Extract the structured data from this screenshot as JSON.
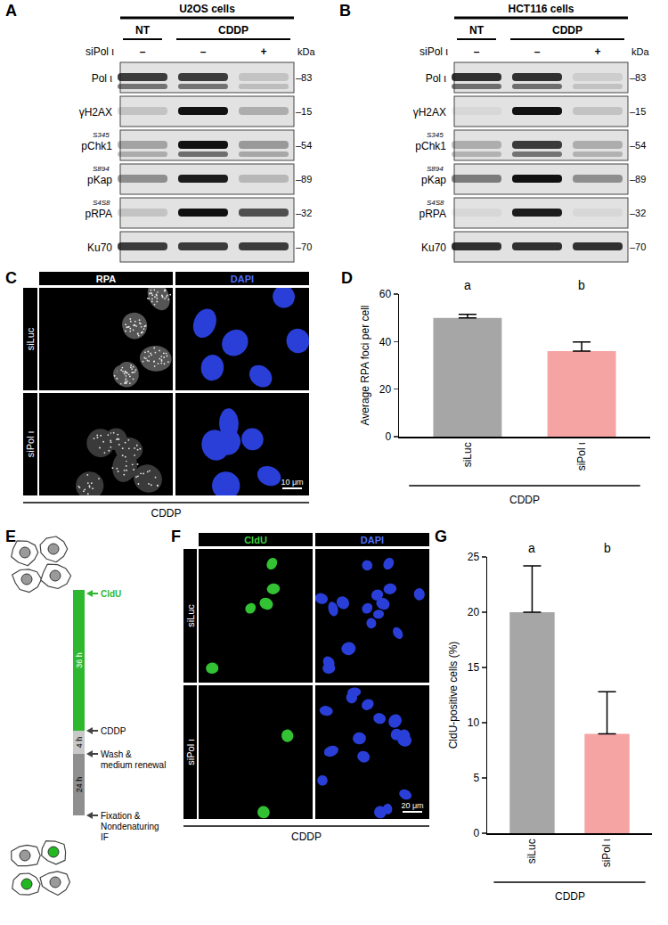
{
  "blots": [
    {
      "panel": "A",
      "title": "U2OS cells",
      "conditions": [
        "NT",
        "CDDP"
      ],
      "treatment_label": "siPol ι",
      "treatment_signs": [
        "–",
        "–",
        "+"
      ],
      "size_unit": "kDa",
      "rows": [
        {
          "label": "Pol ι",
          "kda": "–83"
        },
        {
          "label": "γH2AX",
          "kda": "–15"
        },
        {
          "label": "pChk1",
          "site": "S345",
          "kda": "–54"
        },
        {
          "label": "pKap",
          "site": "S894",
          "kda": "–89"
        },
        {
          "label": "pRPA",
          "site": "S4S8",
          "kda": "–32"
        },
        {
          "label": "Ku70",
          "kda": "–70"
        }
      ]
    },
    {
      "panel": "B",
      "title": "HCT116 cells",
      "conditions": [
        "NT",
        "CDDP"
      ],
      "treatment_label": "siPol ι",
      "treatment_signs": [
        "–",
        "–",
        "+"
      ],
      "size_unit": "kDa",
      "rows": [
        {
          "label": "Pol ι",
          "kda": "–83"
        },
        {
          "label": "γH2AX",
          "kda": "–15"
        },
        {
          "label": "pChk1",
          "site": "S345",
          "kda": "–54"
        },
        {
          "label": "pKap",
          "site": "S894",
          "kda": "–89"
        },
        {
          "label": "pRPA",
          "site": "S4S8",
          "kda": "–32"
        },
        {
          "label": "Ku70",
          "kda": "–70"
        }
      ]
    }
  ],
  "micrographs": [
    {
      "panel": "C",
      "columns": [
        "RPA",
        "DAPI"
      ],
      "rows": [
        "siLuc",
        "siPol ι"
      ],
      "scale_bar": "10 μm",
      "treatment": "CDDP"
    },
    {
      "panel": "F",
      "columns": [
        "CldU",
        "DAPI"
      ],
      "rows": [
        "siLuc",
        "siPol ι"
      ],
      "scale_bar": "20 μm",
      "treatment": "CDDP"
    }
  ],
  "schematic": {
    "panel": "E",
    "segments": [
      "36 h",
      "4 h",
      "24 h"
    ],
    "events": [
      [
        "CldU"
      ],
      [
        "CDDP"
      ],
      [
        "Wash &",
        "medium renewal"
      ],
      [
        "Fixation &",
        "Nondenaturing",
        "IF"
      ]
    ]
  },
  "chart_data": [
    {
      "panel": "D",
      "type": "bar",
      "categories": [
        "siLuc",
        "siPol ι"
      ],
      "values": [
        50,
        36
      ],
      "errors": [
        1.5,
        3.8
      ],
      "colors": [
        "#a6a6a6",
        "#f5a3a3"
      ],
      "y_label": "Average RPA foci per cell",
      "group_label": "CDDP",
      "annotations": [
        "a",
        "b"
      ],
      "ylim": [
        0,
        60
      ],
      "yticks": [
        0,
        20,
        40,
        60
      ],
      "grid": false
    },
    {
      "panel": "G",
      "type": "bar",
      "categories": [
        "siLuc",
        "siPol ι"
      ],
      "values": [
        20,
        9
      ],
      "errors": [
        4.2,
        3.8
      ],
      "colors": [
        "#a6a6a6",
        "#f5a3a3"
      ],
      "y_label": "CldU-positive cells (%)",
      "group_label": "CDDP",
      "annotations": [
        "a",
        "b"
      ],
      "ylim": [
        0,
        25
      ],
      "yticks": [
        0,
        5,
        10,
        15,
        20,
        25
      ],
      "grid": false
    }
  ]
}
